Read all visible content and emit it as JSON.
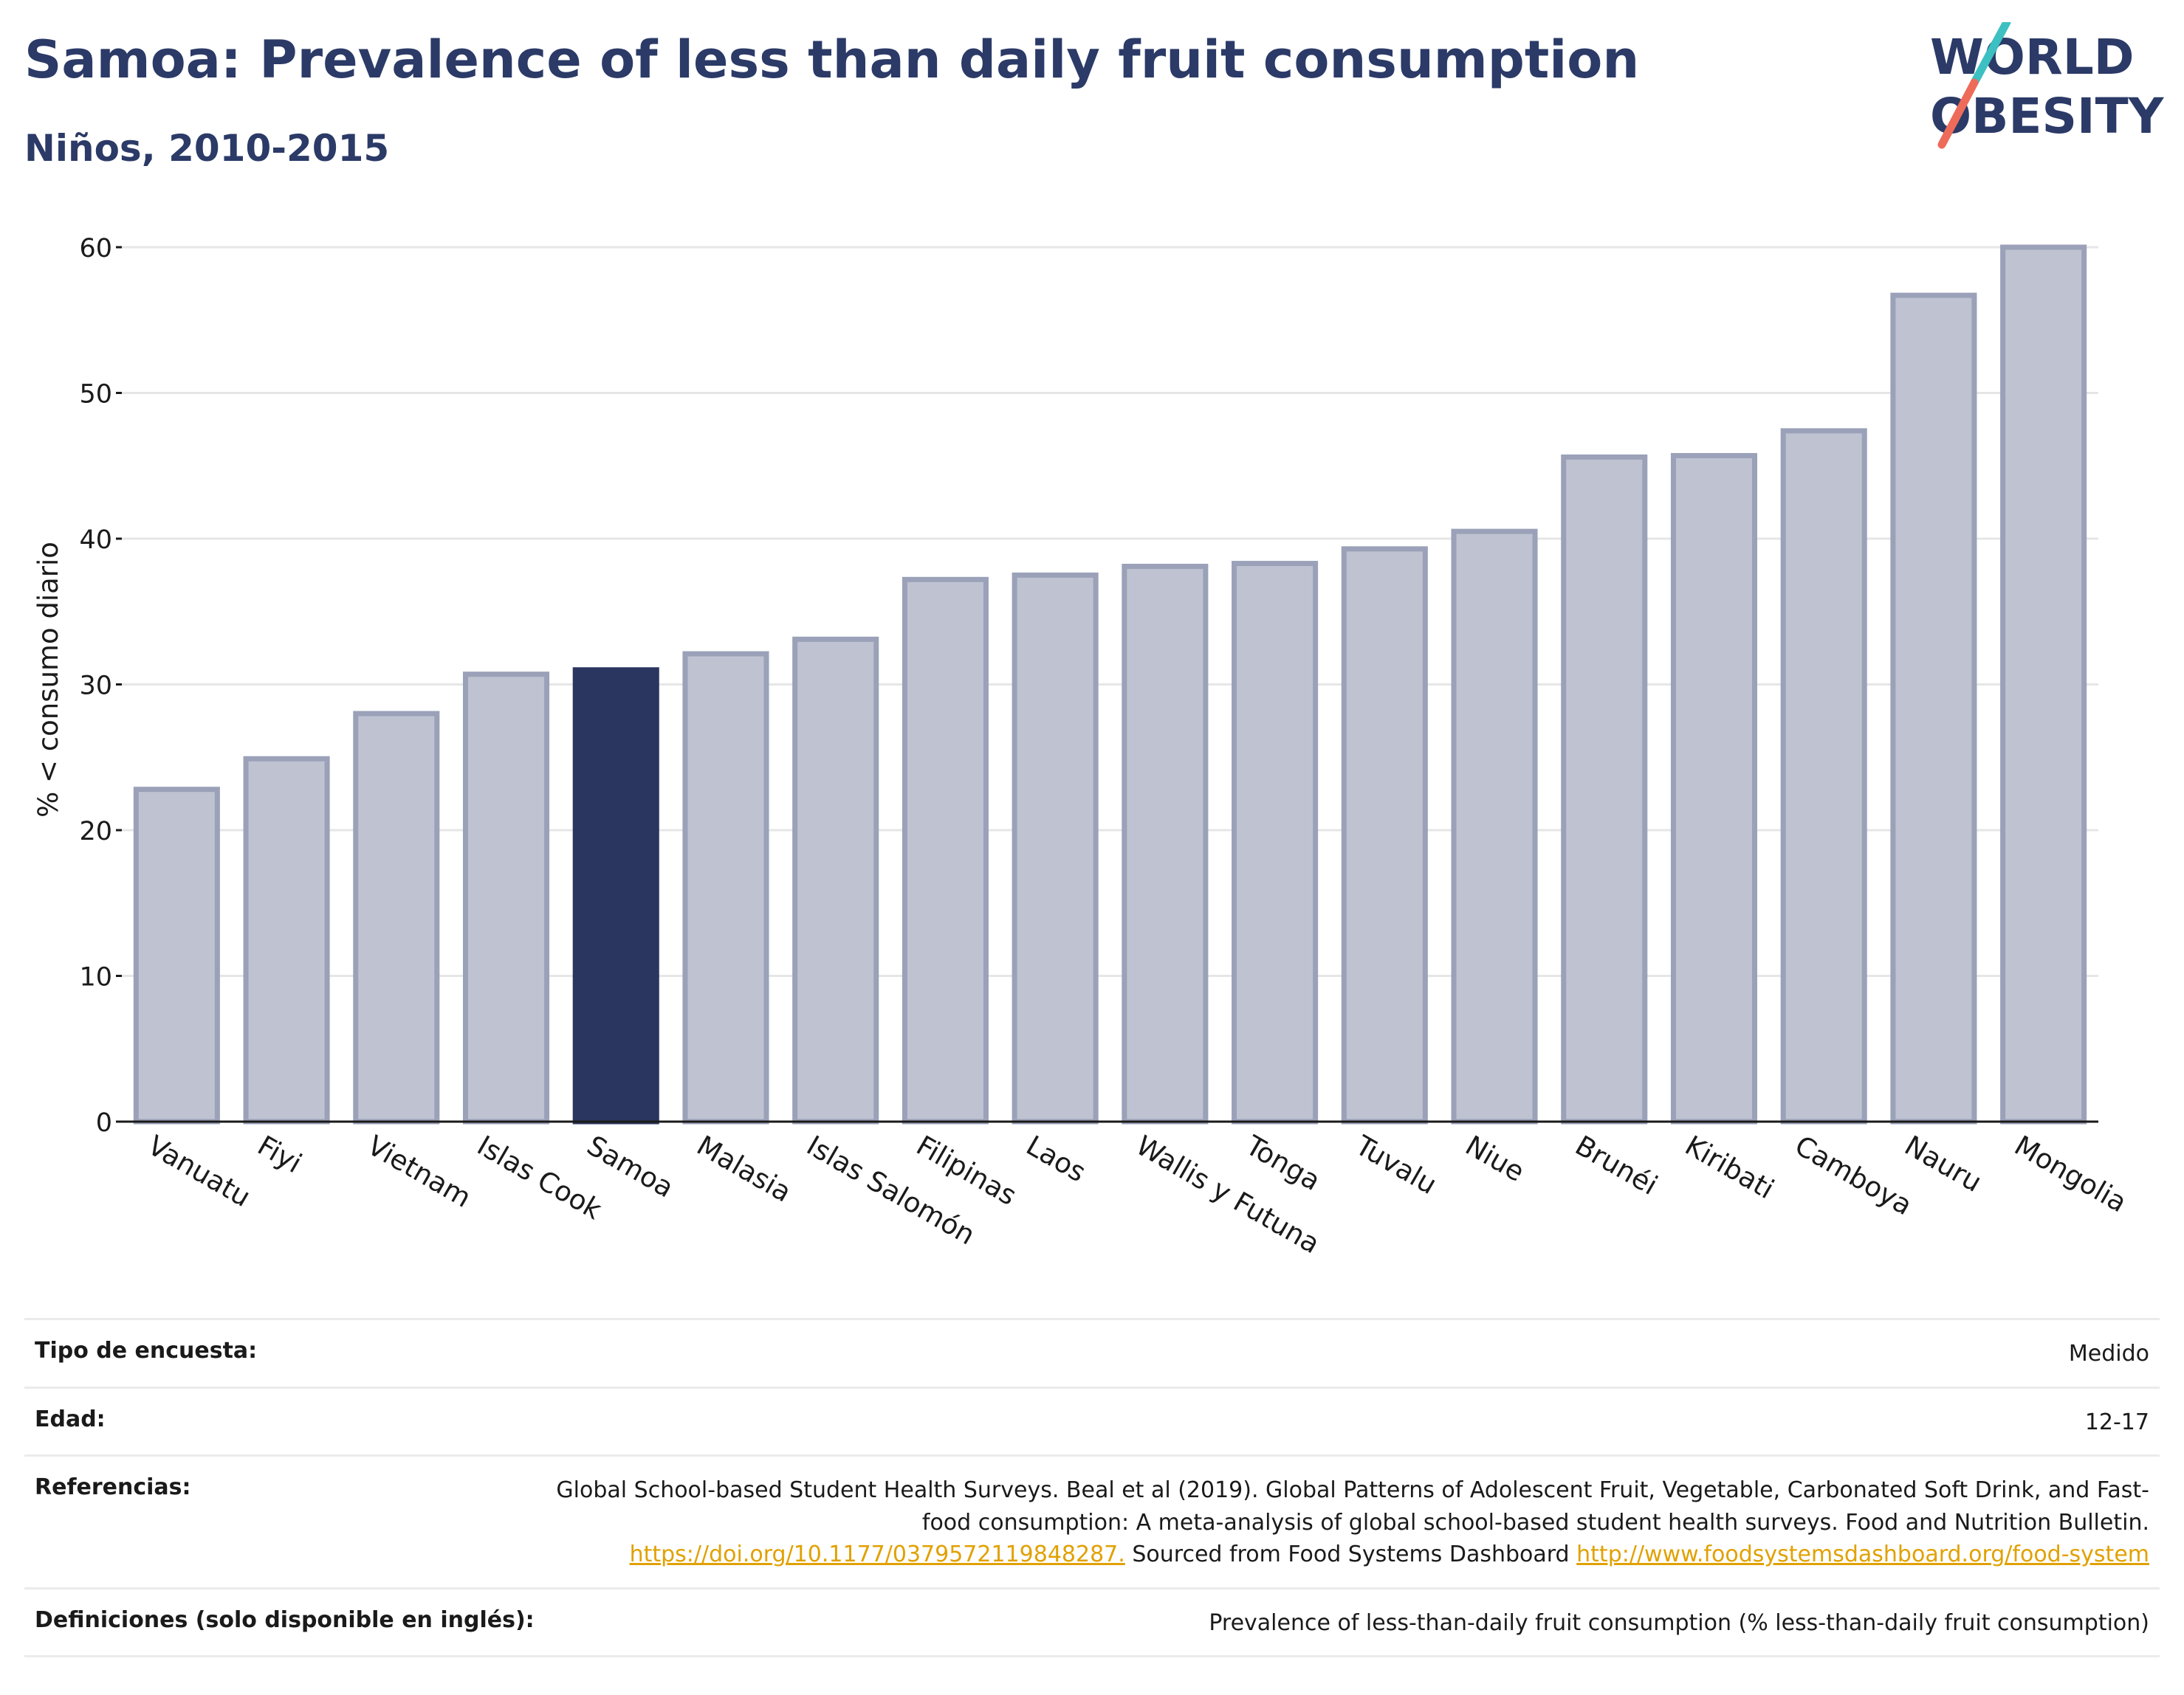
{
  "header": {
    "title": "Samoa: Prevalence of less than daily fruit consumption",
    "subtitle": "Niños, 2010-2015"
  },
  "logo": {
    "line1": "WORLD",
    "line2": "OBESITY"
  },
  "colors": {
    "highlight": "#2b3660",
    "bar_fill": "#bfc3d1",
    "bar_stroke": "#9aa1b8",
    "title": "#2b3a67",
    "link": "#e1a100",
    "logo_teal": "#3cc0c2",
    "logo_coral": "#ee6b5a"
  },
  "chart_data": {
    "type": "bar",
    "ylabel": "% < consumo diario",
    "ylim": [
      0,
      60
    ],
    "yticks": [
      0,
      10,
      20,
      30,
      40,
      50,
      60
    ],
    "grid": true,
    "highlight": "Samoa",
    "categories": [
      "Vanuatu",
      "Fiyi",
      "Vietnam",
      "Islas Cook",
      "Samoa",
      "Malasia",
      "Islas Salomón",
      "Filipinas",
      "Laos",
      "Wallis y Futuna",
      "Tonga",
      "Tuvalu",
      "Niue",
      "Brunéi",
      "Kiribati",
      "Camboya",
      "Nauru",
      "Mongolia"
    ],
    "values": [
      22.8,
      24.9,
      28.0,
      30.7,
      31.0,
      32.1,
      33.1,
      37.2,
      37.5,
      38.1,
      38.3,
      39.3,
      40.5,
      45.6,
      45.7,
      47.4,
      56.7,
      60.0
    ]
  },
  "meta": {
    "survey_type_label": "Tipo de encuesta:",
    "survey_type_value": "Medido",
    "age_label": "Edad:",
    "age_value": "12-17",
    "references_label": "Referencias:",
    "references_text": "Global School-based Student Health Surveys. Beal et al (2019). Global Patterns of Adolescent Fruit, Vegetable, Carbonated Soft Drink, and Fast-food consumption: A meta-analysis of global school-based student health surveys. Food and Nutrition Bulletin.",
    "references_doi": "https://doi.org/10.1177/0379572119848287.",
    "references_sourced": "Sourced from Food Systems Dashboard",
    "references_url": "http://www.foodsystemsdashboard.org/food-system",
    "definitions_label": "Definiciones (solo disponible en inglés):",
    "definitions_value": "Prevalence of less-than-daily fruit consumption (% less-than-daily fruit consumption)"
  }
}
